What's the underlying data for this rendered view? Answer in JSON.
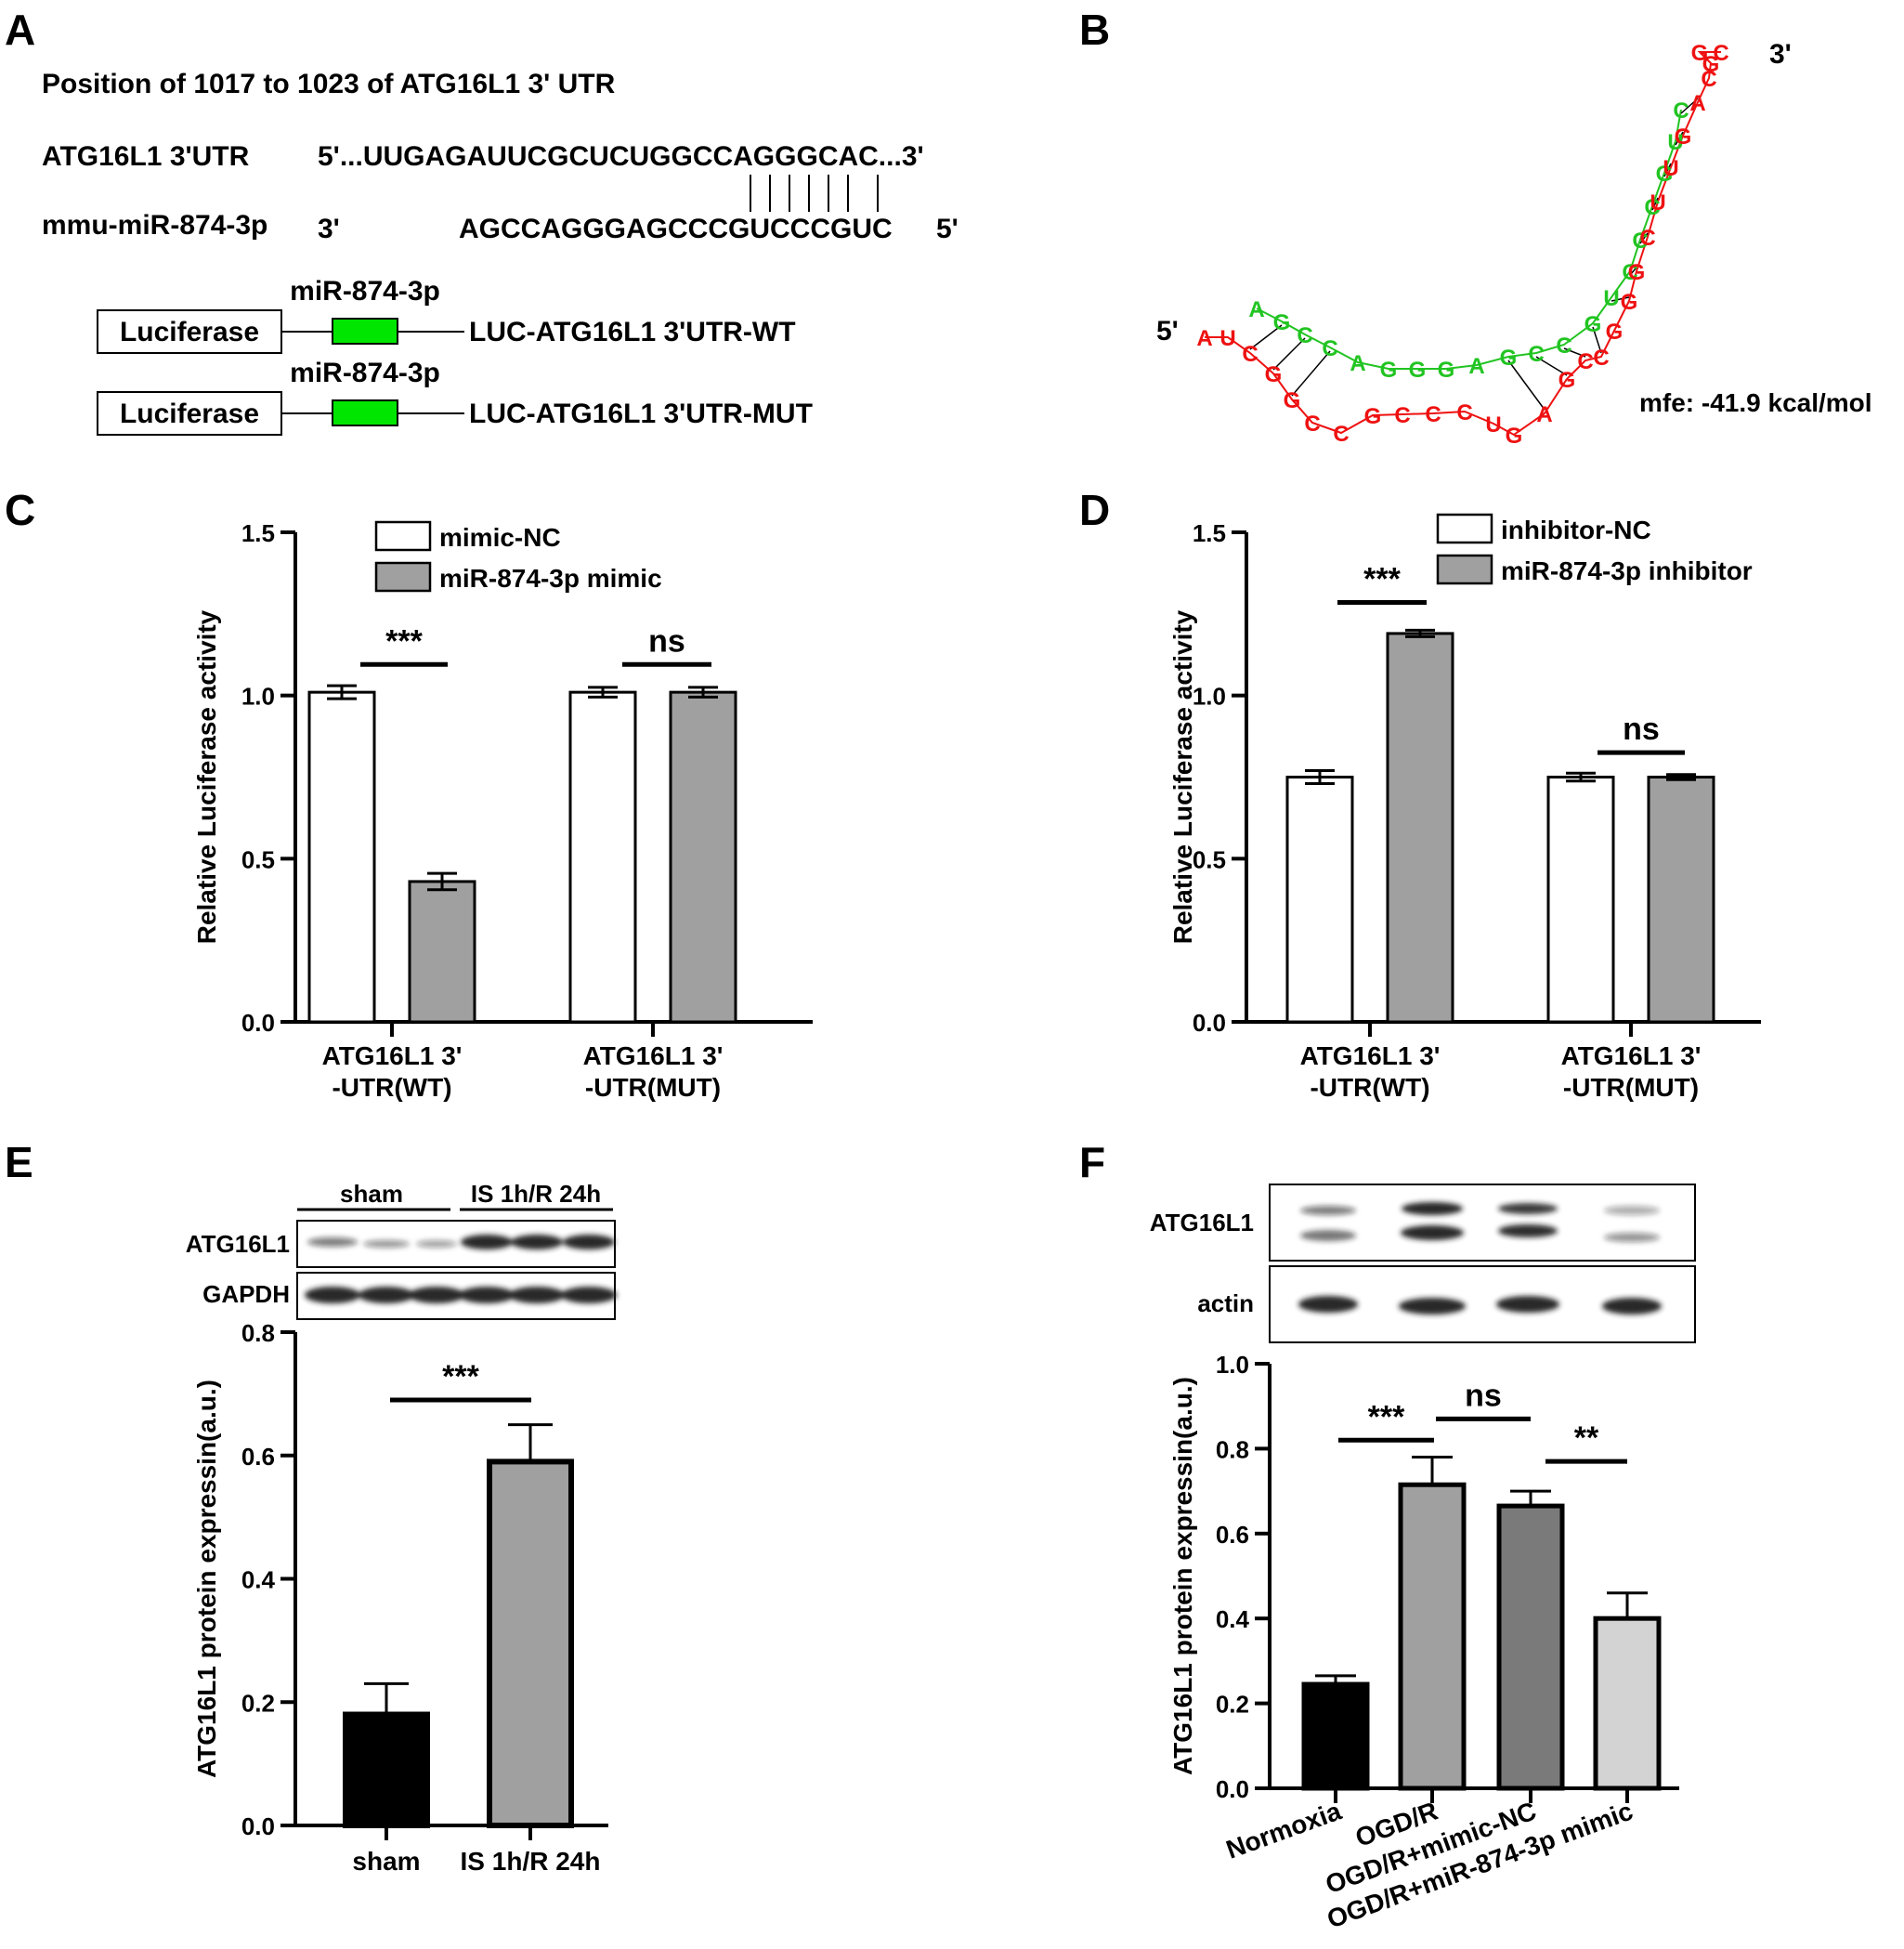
{
  "panel_labels": {
    "a": "A",
    "b": "B",
    "c": "C",
    "d": "D",
    "e": "E",
    "f": "F"
  },
  "panel_a": {
    "position_text": "Position of 1017 to 1023 of ATG16L1 3' UTR",
    "utr_name": "ATG16L1 3'UTR",
    "utr_seq": "5'...UUGAGAUUCGCUCUGGCCAGGGCAC...3'",
    "mirna_name": "mmu-miR-874-3p",
    "mirna_3p": "3'",
    "mirna_seq": "AGCCAGGGAGCCCGUCCCGUC",
    "mirna_5p": "5'",
    "construct_wt": {
      "box": "Luciferase",
      "site": "miR-874-3p",
      "label": "LUC-ATG16L1 3'UTR-WT"
    },
    "construct_mut": {
      "box": "Luciferase",
      "site": "miR-874-3p",
      "label": "LUC-ATG16L1 3'UTR-MUT"
    },
    "site_color": "#00e600"
  },
  "panel_b": {
    "end_5": "5'",
    "end_3": "3'",
    "mfe": "mfe: -41.9 kcal/mol",
    "green_color": "#22c422",
    "red_color": "#ee1111",
    "green_strand": [
      "A",
      "G",
      "C",
      "C",
      "A",
      "G",
      "G",
      "G",
      "A",
      "G",
      "C",
      "C",
      "G",
      "U",
      "C",
      "C",
      "C",
      "G",
      "U",
      "C"
    ],
    "red_strand": [
      "A",
      "U",
      "C",
      "G",
      "G",
      "C",
      "C",
      "G",
      "C",
      "C",
      "C",
      "U",
      "G",
      "A",
      "G",
      "C",
      "C",
      "G",
      "G",
      "G",
      "C",
      "U",
      "U",
      "G",
      "A",
      "C",
      "G",
      "G",
      "C"
    ]
  },
  "chart_data": [
    {
      "type": "bar",
      "panel": "C",
      "ylabel": "Relative Luciferase activity",
      "ylim": [
        0,
        1.5
      ],
      "yticks": [
        "0.0",
        "0.5",
        "1.0",
        "1.5"
      ],
      "categories": [
        "ATG16L1 3'-UTR(WT)",
        "ATG16L1 3'-UTR(MUT)"
      ],
      "category_lines": [
        [
          "ATG16L1 3'",
          "-UTR(WT)"
        ],
        [
          "ATG16L1 3'",
          "-UTR(MUT)"
        ]
      ],
      "series": [
        {
          "name": "mimic-NC",
          "color": "#ffffff",
          "values": [
            1.01,
            1.01
          ],
          "errors": [
            0.02,
            0.015
          ]
        },
        {
          "name": "miR-874-3p mimic",
          "color": "#a0a0a0",
          "values": [
            0.43,
            1.01
          ],
          "errors": [
            0.025,
            0.015
          ]
        }
      ],
      "legend_position": "top",
      "significance": [
        "***",
        "ns"
      ]
    },
    {
      "type": "bar",
      "panel": "D",
      "ylabel": "Relative Luciferase activity",
      "ylim": [
        0,
        1.5
      ],
      "yticks": [
        "0.0",
        "0.5",
        "1.0",
        "1.5"
      ],
      "categories": [
        "ATG16L1 3'-UTR(WT)",
        "ATG16L1 3'-UTR(MUT)"
      ],
      "category_lines": [
        [
          "ATG16L1 3'",
          "-UTR(WT)"
        ],
        [
          "ATG16L1 3'",
          "-UTR(MUT)"
        ]
      ],
      "series": [
        {
          "name": "inhibitor-NC",
          "color": "#ffffff",
          "values": [
            0.75,
            0.75
          ],
          "errors": [
            0.02,
            0.012
          ]
        },
        {
          "name": "miR-874-3p inhibitor",
          "color": "#a0a0a0",
          "values": [
            1.19,
            0.75
          ],
          "errors": [
            0.01,
            0.008
          ]
        }
      ],
      "legend_position": "top",
      "significance": [
        "***",
        "ns"
      ]
    },
    {
      "type": "bar",
      "panel": "E",
      "ylabel": "ATG16L1 protein expressin(a.u.)",
      "ylim": [
        0,
        0.8
      ],
      "yticks": [
        "0.0",
        "0.2",
        "0.4",
        "0.6",
        "0.8"
      ],
      "categories": [
        "sham",
        "IS 1h/R 24h"
      ],
      "values": [
        0.18,
        0.59
      ],
      "errors": [
        0.05,
        0.06
      ],
      "colors": [
        "#000000",
        "#a0a0a0"
      ],
      "significance": [
        "***"
      ]
    },
    {
      "type": "bar",
      "panel": "F",
      "ylabel": "ATG16L1 protein expressin(a.u.)",
      "ylim": [
        0,
        1.0
      ],
      "yticks": [
        "0.0",
        "0.2",
        "0.4",
        "0.6",
        "0.8",
        "1.0"
      ],
      "categories": [
        "Normoxia",
        "OGD/R",
        "OGD/R+mimic-NC",
        "OGD/R+miR-874-3p mimic"
      ],
      "values": [
        0.245,
        0.715,
        0.665,
        0.4
      ],
      "errors": [
        0.02,
        0.065,
        0.035,
        0.06
      ],
      "colors": [
        "#000000",
        "#a0a0a0",
        "#7a7a7a",
        "#d3d3d3"
      ],
      "significance": [
        "***",
        "ns",
        "**"
      ]
    }
  ],
  "panel_e_blot": {
    "group_1": "sham",
    "group_2": "IS 1h/R 24h",
    "row_1": "ATG16L1",
    "row_2": "GAPDH"
  },
  "panel_f_blot": {
    "row_1": "ATG16L1",
    "row_2": "actin"
  }
}
